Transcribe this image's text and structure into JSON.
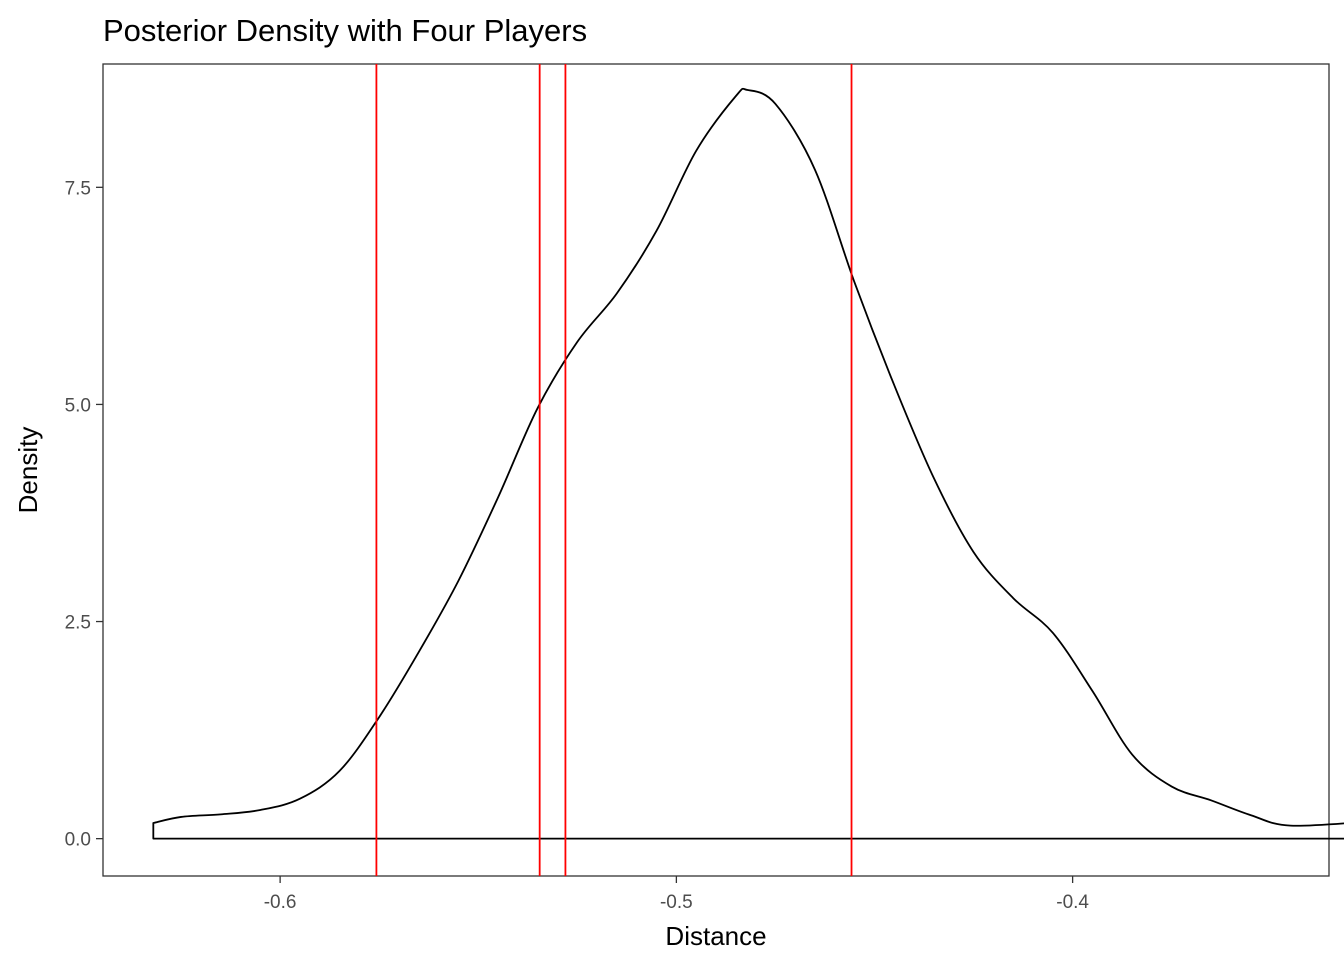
{
  "chart_data": {
    "type": "area",
    "title": "Posterior Density with Four Players",
    "xlabel": "Distance",
    "ylabel": "Density",
    "xlim": [
      -0.6447,
      -0.3353
    ],
    "ylim": [
      -0.43,
      8.92
    ],
    "xticks": [
      -0.6,
      -0.5,
      -0.4
    ],
    "xtick_labels": [
      "-0.6",
      "-0.5",
      "-0.4"
    ],
    "yticks": [
      0.0,
      2.5,
      5.0,
      7.5
    ],
    "ytick_labels": [
      "0.0",
      "2.5",
      "5.0",
      "7.5"
    ],
    "grid": false,
    "legend": "none",
    "density": {
      "x": [
        -0.632,
        -0.625,
        -0.615,
        -0.605,
        -0.595,
        -0.585,
        -0.575,
        -0.565,
        -0.555,
        -0.545,
        -0.535,
        -0.525,
        -0.515,
        -0.505,
        -0.495,
        -0.485,
        -0.482,
        -0.475,
        -0.465,
        -0.455,
        -0.445,
        -0.435,
        -0.425,
        -0.415,
        -0.405,
        -0.395,
        -0.385,
        -0.375,
        -0.365,
        -0.355,
        -0.345,
        -0.3245
      ],
      "y": [
        0.18,
        0.25,
        0.28,
        0.33,
        0.46,
        0.78,
        1.4,
        2.15,
        2.97,
        3.93,
        4.96,
        5.72,
        6.28,
        7.0,
        7.92,
        8.55,
        8.62,
        8.46,
        7.7,
        6.4,
        5.22,
        4.15,
        3.3,
        2.77,
        2.37,
        1.7,
        0.97,
        0.6,
        0.44,
        0.27,
        0.15,
        0.2
      ],
      "color": "#000000"
    },
    "vlines": {
      "x": [
        -0.5757,
        -0.5345,
        -0.528,
        -0.4558
      ],
      "color": "#ff0000"
    }
  }
}
